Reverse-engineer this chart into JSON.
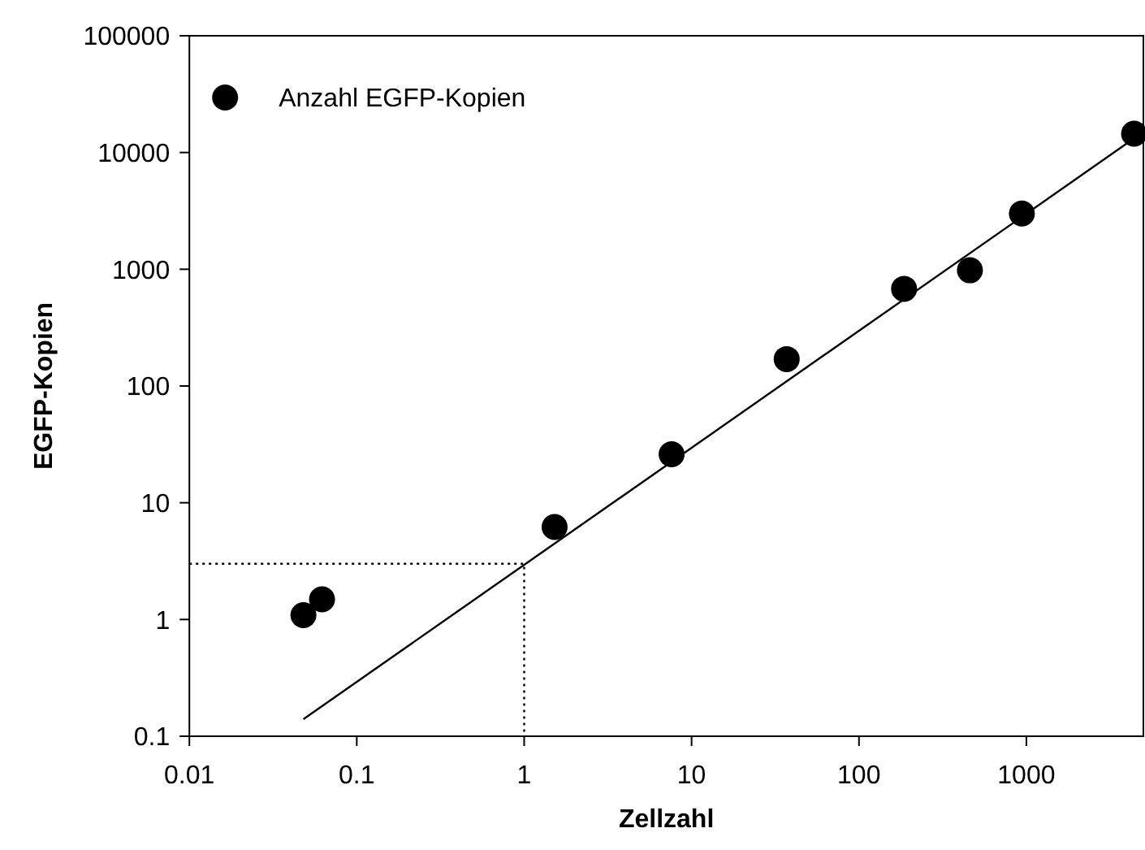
{
  "chart_data": {
    "type": "scatter",
    "xlabel": "Zellzahl",
    "ylabel": "EGFP-Kopien",
    "log": "xy",
    "xlim": [
      0.01,
      5000
    ],
    "ylim": [
      0.1,
      100000
    ],
    "xticks": [
      0.01,
      0.1,
      1,
      10,
      100,
      1000
    ],
    "yticks": [
      0.1,
      1,
      10,
      100,
      1000,
      10000,
      100000
    ],
    "grid": false,
    "legend": "top left",
    "marker": "circle",
    "series": [
      {
        "name": "Anzahl EGFP-Kopien",
        "color": "#000000",
        "x": [
          0.048,
          0.062,
          1.52,
          7.6,
          37,
          186,
          460,
          940,
          4400
        ],
        "values": [
          1.09,
          1.49,
          6.2,
          26,
          170,
          680,
          980,
          3000,
          14500
        ]
      },
      {
        "type": "line",
        "color": "#000000",
        "line_style": "solid",
        "marker": "none",
        "x": [
          0.048,
          4400
        ],
        "values": [
          0.14,
          13200
        ]
      },
      {
        "type": "line",
        "color": "#000000",
        "line_style": "dotted",
        "marker": "none",
        "x": [
          0.01,
          1,
          1
        ],
        "values": [
          3,
          3,
          0.1
        ]
      }
    ]
  }
}
